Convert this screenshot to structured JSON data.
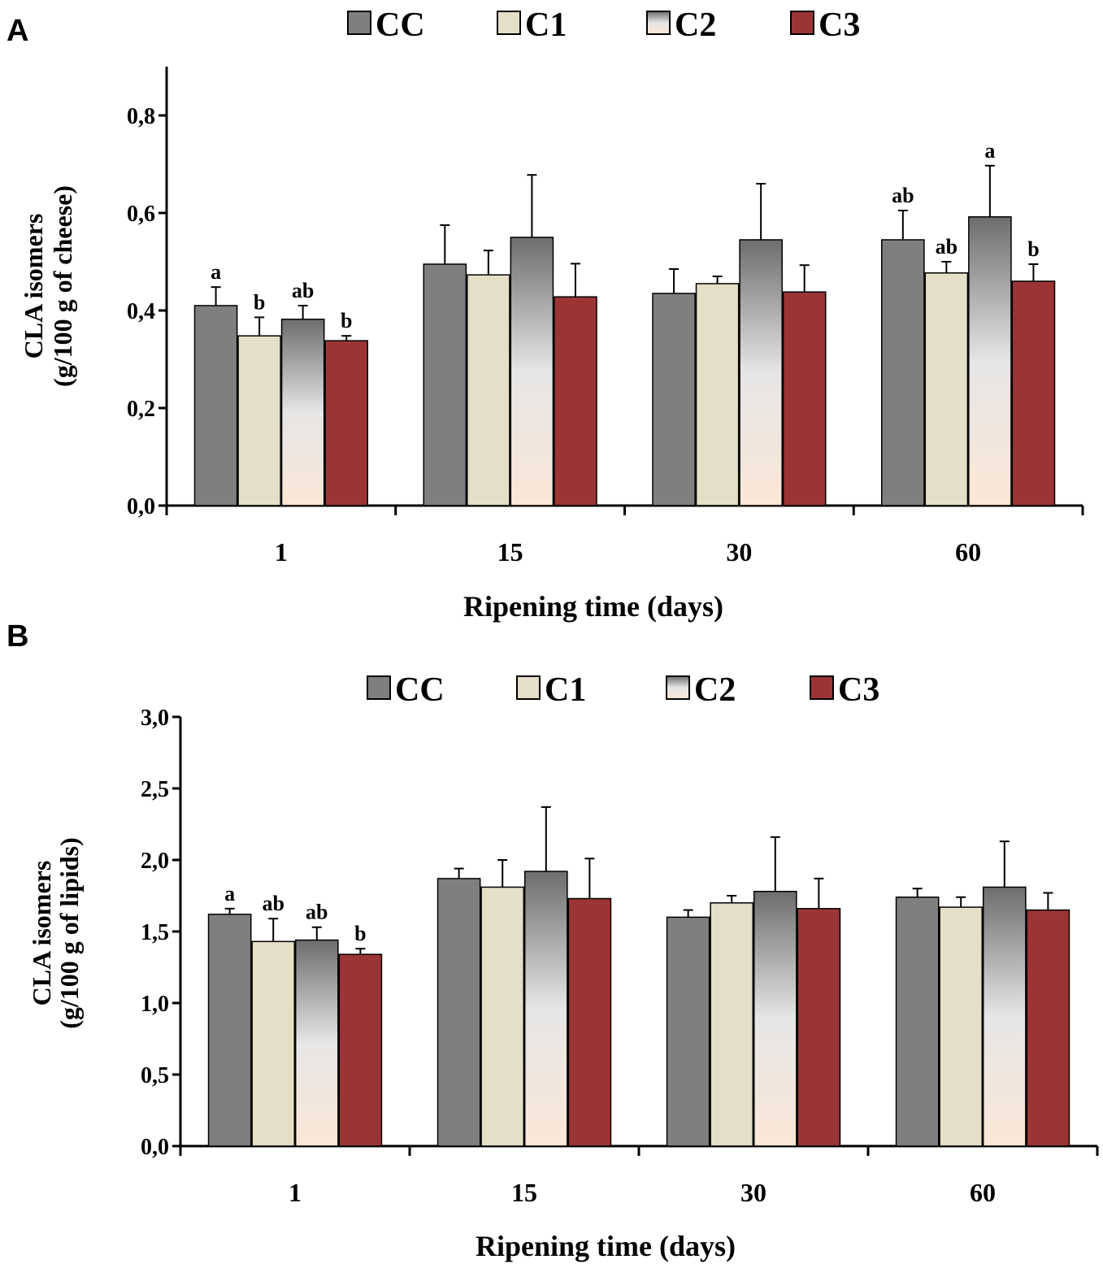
{
  "colors": {
    "CC": "#7f7f7f",
    "C1": "#e4dfc6",
    "C2_top": "#6d6d6d",
    "C2_mid": "#e6e6e6",
    "C2_bottom": "#fbe7d6",
    "C3": "#9b3535"
  },
  "chart_data": [
    {
      "panel": "A",
      "type": "bar",
      "categories": [
        "1",
        "15",
        "30",
        "60"
      ],
      "series": [
        {
          "name": "CC",
          "values": [
            0.41,
            0.495,
            0.435,
            0.545
          ],
          "errors": [
            0.038,
            0.08,
            0.05,
            0.06
          ],
          "labels": [
            "a",
            "",
            "",
            "ab"
          ]
        },
        {
          "name": "C1",
          "values": [
            0.348,
            0.473,
            0.455,
            0.477
          ],
          "errors": [
            0.038,
            0.05,
            0.015,
            0.023
          ],
          "labels": [
            "b",
            "",
            "",
            "ab"
          ]
        },
        {
          "name": "C2",
          "values": [
            0.382,
            0.55,
            0.545,
            0.592
          ],
          "errors": [
            0.028,
            0.128,
            0.115,
            0.105
          ],
          "labels": [
            "ab",
            "",
            "",
            "a"
          ]
        },
        {
          "name": "C3",
          "values": [
            0.338,
            0.428,
            0.438,
            0.46
          ],
          "errors": [
            0.01,
            0.068,
            0.055,
            0.035
          ],
          "labels": [
            "b",
            "",
            "",
            "b"
          ]
        }
      ],
      "xlabel": "Ripening time (days)",
      "ylabel_line1": "CLA isomers",
      "ylabel_line2": "(g/100 g of cheese)",
      "ylim": [
        0,
        0.9
      ],
      "yticks": [
        0,
        0.2,
        0.4,
        0.6,
        0.8
      ],
      "ytick_labels": [
        "0,0",
        "0,2",
        "0,4",
        "0,6",
        "0,8"
      ],
      "legend": [
        "CC",
        "C1",
        "C2",
        "C3"
      ],
      "legend_position": "top-center",
      "grid": false
    },
    {
      "panel": "B",
      "type": "bar",
      "categories": [
        "1",
        "15",
        "30",
        "60"
      ],
      "series": [
        {
          "name": "CC",
          "values": [
            1.62,
            1.87,
            1.6,
            1.74
          ],
          "errors": [
            0.04,
            0.07,
            0.05,
            0.06
          ],
          "labels": [
            "a",
            "",
            "",
            ""
          ]
        },
        {
          "name": "C1",
          "values": [
            1.43,
            1.81,
            1.7,
            1.67
          ],
          "errors": [
            0.16,
            0.19,
            0.05,
            0.07
          ],
          "labels": [
            "ab",
            "",
            "",
            ""
          ]
        },
        {
          "name": "C2",
          "values": [
            1.44,
            1.92,
            1.78,
            1.81
          ],
          "errors": [
            0.09,
            0.45,
            0.38,
            0.32
          ],
          "labels": [
            "ab",
            "",
            "",
            ""
          ]
        },
        {
          "name": "C3",
          "values": [
            1.34,
            1.73,
            1.66,
            1.65
          ],
          "errors": [
            0.04,
            0.28,
            0.21,
            0.12
          ],
          "labels": [
            "b",
            "",
            "",
            ""
          ]
        }
      ],
      "xlabel": "Ripening time (days)",
      "ylabel_line1": "CLA isomers",
      "ylabel_line2": "(g/100 g of lipids)",
      "ylim": [
        0,
        3
      ],
      "yticks": [
        0,
        0.5,
        1,
        1.5,
        2,
        2.5,
        3
      ],
      "ytick_labels": [
        "0,0",
        "0,5",
        "1,0",
        "1,5",
        "2,0",
        "2,5",
        "3,0"
      ],
      "legend": [
        "CC",
        "C1",
        "C2",
        "C3"
      ],
      "legend_position": "top-center",
      "grid": false
    }
  ]
}
